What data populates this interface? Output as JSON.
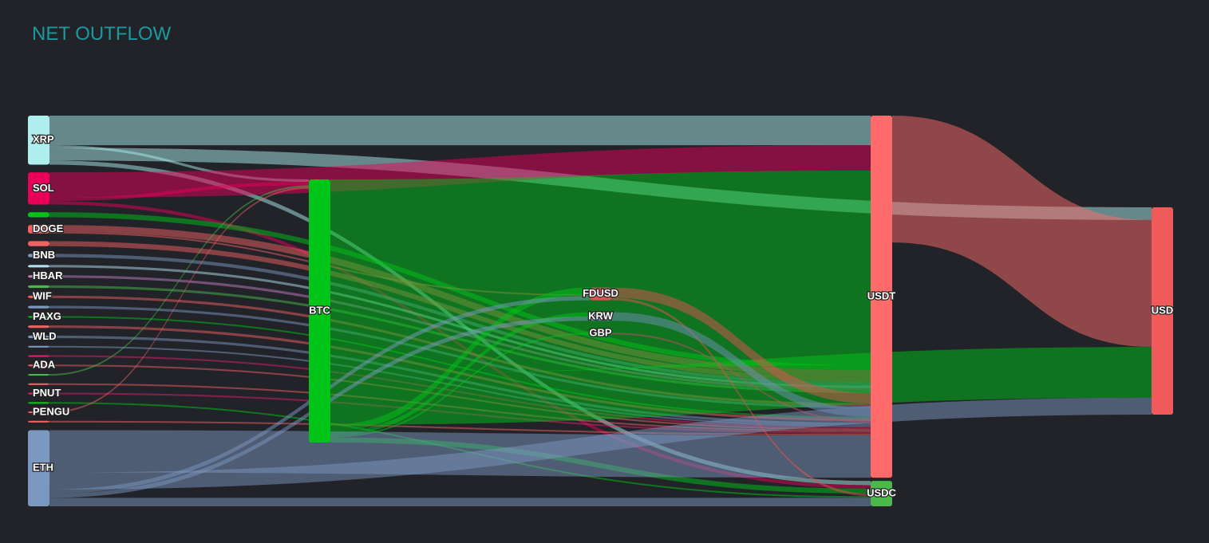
{
  "chart_data": {
    "type": "sankey",
    "title": "NET OUTFLOW",
    "nodes": [
      {
        "name": "XRP",
        "color": "#aeeeee"
      },
      {
        "name": "SOL",
        "color": "#e8005a"
      },
      {
        "name": null,
        "color": "#00c417"
      },
      {
        "name": "DOGE",
        "color": "#f06262"
      },
      {
        "name": null,
        "color": "#f06262"
      },
      {
        "name": "BNB",
        "color": "#7b98c0"
      },
      {
        "name": null,
        "color": "#b0e0f0"
      },
      {
        "name": "HBAR",
        "color": "#c080c0"
      },
      {
        "name": null,
        "color": "#4cb84c"
      },
      {
        "name": "WIF",
        "color": "#f06262"
      },
      {
        "name": null,
        "color": "#7b98c0"
      },
      {
        "name": "PAXG",
        "color": "#00c417"
      },
      {
        "name": null,
        "color": "#f06262"
      },
      {
        "name": "WLD",
        "color": "#7b98c0"
      },
      {
        "name": null,
        "color": "#7b98c0"
      },
      {
        "name": null,
        "color": "#e0206a"
      },
      {
        "name": "ADA",
        "color": "#f06262"
      },
      {
        "name": null,
        "color": "#4cb84c"
      },
      {
        "name": null,
        "color": "#f06262"
      },
      {
        "name": "PNUT",
        "color": "#e0206a"
      },
      {
        "name": null,
        "color": "#00c417"
      },
      {
        "name": "PENGU",
        "color": "#f06262"
      },
      {
        "name": null,
        "color": "#f06262"
      },
      {
        "name": "BTC",
        "color": "#00c417"
      },
      {
        "name": "ETH",
        "color": "#7b98c0"
      },
      {
        "name": "FDUSD",
        "color": "#e05252"
      },
      {
        "name": "KRW",
        "color": "#6f8fb8"
      },
      {
        "name": "GBP",
        "color": "#c0506a"
      },
      {
        "name": "USDT",
        "color": "#ff6b6b"
      },
      {
        "name": "USDC",
        "color": "#4cb84c"
      },
      {
        "name": "USD",
        "color": "#f05a5a"
      }
    ],
    "links": [
      {
        "source": 0,
        "target": 23,
        "value": 3
      },
      {
        "source": 0,
        "target": 28,
        "value": 35
      },
      {
        "source": 0,
        "target": 30,
        "value": 15
      },
      {
        "source": 0,
        "target": 29,
        "value": 5
      },
      {
        "source": 1,
        "target": 23,
        "value": 4
      },
      {
        "source": 1,
        "target": 28,
        "value": 30
      },
      {
        "source": 1,
        "target": 29,
        "value": 4
      },
      {
        "source": 2,
        "target": 28,
        "value": 6
      },
      {
        "source": 3,
        "target": 28,
        "value": 8
      },
      {
        "source": 3,
        "target": 25,
        "value": 2
      },
      {
        "source": 4,
        "target": 28,
        "value": 6
      },
      {
        "source": 5,
        "target": 28,
        "value": 4
      },
      {
        "source": 6,
        "target": 28,
        "value": 3
      },
      {
        "source": 7,
        "target": 28,
        "value": 3
      },
      {
        "source": 8,
        "target": 28,
        "value": 3
      },
      {
        "source": 9,
        "target": 28,
        "value": 3
      },
      {
        "source": 10,
        "target": 28,
        "value": 3
      },
      {
        "source": 11,
        "target": 28,
        "value": 2
      },
      {
        "source": 12,
        "target": 28,
        "value": 3
      },
      {
        "source": 13,
        "target": 28,
        "value": 3
      },
      {
        "source": 14,
        "target": 28,
        "value": 2
      },
      {
        "source": 15,
        "target": 28,
        "value": 2
      },
      {
        "source": 16,
        "target": 28,
        "value": 2
      },
      {
        "source": 17,
        "target": 23,
        "value": 2
      },
      {
        "source": 18,
        "target": 28,
        "value": 2
      },
      {
        "source": 19,
        "target": 28,
        "value": 2
      },
      {
        "source": 20,
        "target": 29,
        "value": 2
      },
      {
        "source": 21,
        "target": 23,
        "value": 2
      },
      {
        "source": 22,
        "target": 28,
        "value": 2
      },
      {
        "source": 23,
        "target": 28,
        "value": 230
      },
      {
        "source": 23,
        "target": 30,
        "value": 60
      },
      {
        "source": 23,
        "target": 25,
        "value": 8
      },
      {
        "source": 23,
        "target": 26,
        "value": 5
      },
      {
        "source": 23,
        "target": 27,
        "value": 2
      },
      {
        "source": 23,
        "target": 29,
        "value": 6
      },
      {
        "source": 24,
        "target": 28,
        "value": 50
      },
      {
        "source": 24,
        "target": 30,
        "value": 20
      },
      {
        "source": 24,
        "target": 29,
        "value": 10
      },
      {
        "source": 24,
        "target": 25,
        "value": 5
      },
      {
        "source": 24,
        "target": 26,
        "value": 5
      },
      {
        "source": 25,
        "target": 28,
        "value": 12
      },
      {
        "source": 25,
        "target": 29,
        "value": 3
      },
      {
        "source": 26,
        "target": 28,
        "value": 10
      },
      {
        "source": 27,
        "target": 28,
        "value": 2
      },
      {
        "source": 28,
        "target": 30,
        "value": 150
      }
    ]
  }
}
